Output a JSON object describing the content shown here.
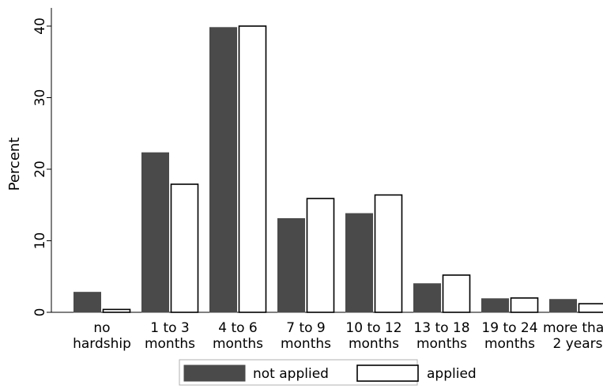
{
  "chart_data": {
    "type": "bar",
    "ylabel": "Percent",
    "ylim": [
      0,
      42
    ],
    "yticks": [
      "0",
      "10",
      "20",
      "30",
      "40"
    ],
    "categories": [
      [
        "no",
        "hardship"
      ],
      [
        "1 to 3",
        "months"
      ],
      [
        "4 to 6",
        "months"
      ],
      [
        "7 to 9",
        "months"
      ],
      [
        "10 to 12",
        "months"
      ],
      [
        "13 to 18",
        "months"
      ],
      [
        "19 to 24",
        "months"
      ],
      [
        "more than",
        "2 years"
      ]
    ],
    "series": [
      {
        "name": "not applied",
        "values": [
          2.8,
          22.3,
          39.8,
          13.1,
          13.8,
          4.0,
          1.9,
          1.8
        ],
        "fill": "#4a4a4a",
        "stroke": "#4a4a4a"
      },
      {
        "name": "applied",
        "values": [
          0.4,
          17.9,
          40.0,
          15.9,
          16.4,
          5.2,
          2.0,
          1.2
        ],
        "fill": "#ffffff",
        "stroke": "#000000"
      }
    ],
    "grid": false,
    "legend_position": "bottom"
  }
}
